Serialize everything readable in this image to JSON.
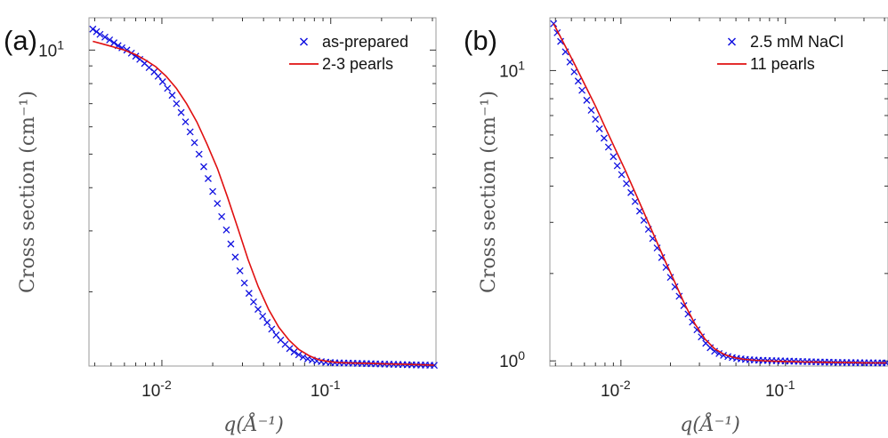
{
  "colors": {
    "data": "#1010e0",
    "fit": "#e01010",
    "axis": "#333333"
  },
  "chart_data": [
    {
      "type": "line",
      "panel_label": "(a)",
      "xscale": "log",
      "yscale": "log",
      "xlim": [
        0.0037,
        0.42
      ],
      "ylim": [
        1.22,
        12.4
      ],
      "xticks": [
        {
          "value": 0.01,
          "base": "10",
          "exp": "-2"
        },
        {
          "value": 0.1,
          "base": "10",
          "exp": "-1"
        }
      ],
      "yticks": [
        {
          "value": 10,
          "base": "10",
          "exp": "1"
        }
      ],
      "xlabel": "q(Å⁻¹)",
      "ylabel": "Cross section (cm⁻¹)",
      "legend_position": "top-right",
      "series": [
        {
          "name": "as-prepared",
          "kind": "scatter",
          "marker": "x",
          "x": [
            0.0039,
            0.0041,
            0.0043,
            0.0046,
            0.0049,
            0.0052,
            0.0055,
            0.0058,
            0.0062,
            0.0066,
            0.007,
            0.0074,
            0.0079,
            0.0084,
            0.009,
            0.0095,
            0.0101,
            0.0108,
            0.0115,
            0.0122,
            0.013,
            0.0138,
            0.0147,
            0.0156,
            0.0166,
            0.0177,
            0.0188,
            0.02,
            0.0213,
            0.0226,
            0.0241,
            0.0256,
            0.0272,
            0.029,
            0.0308,
            0.0328,
            0.0349,
            0.0371,
            0.0395,
            0.042,
            0.0447,
            0.0475,
            0.0505,
            0.0537,
            0.0571,
            0.0607,
            0.0646,
            0.0687,
            0.0731,
            0.0777,
            0.0827,
            0.0879,
            0.0935,
            0.0995,
            0.1058,
            0.1125,
            0.1197,
            0.1273,
            0.1354,
            0.144,
            0.1532,
            0.1629,
            0.1733,
            0.1843,
            0.196,
            0.2085,
            0.2217,
            0.2358,
            0.2508,
            0.2668,
            0.2837,
            0.3018,
            0.321,
            0.3414,
            0.3631,
            0.3862,
            0.41
          ],
          "y": [
            11.5,
            11.3,
            11.1,
            10.9,
            10.7,
            10.5,
            10.3,
            10.15,
            10.0,
            9.8,
            9.6,
            9.4,
            9.15,
            8.9,
            8.65,
            8.4,
            8.1,
            7.75,
            7.4,
            7.0,
            6.6,
            6.2,
            5.8,
            5.4,
            5.0,
            4.6,
            4.25,
            3.9,
            3.6,
            3.3,
            3.02,
            2.75,
            2.52,
            2.3,
            2.12,
            1.98,
            1.87,
            1.78,
            1.7,
            1.63,
            1.56,
            1.5,
            1.45,
            1.41,
            1.37,
            1.34,
            1.315,
            1.295,
            1.28,
            1.27,
            1.262,
            1.256,
            1.252,
            1.249,
            1.247,
            1.246,
            1.245,
            1.244,
            1.243,
            1.242,
            1.241,
            1.24,
            1.239,
            1.238,
            1.237,
            1.236,
            1.235,
            1.234,
            1.233,
            1.232,
            1.231,
            1.23,
            1.229,
            1.228,
            1.228,
            1.227,
            1.226
          ]
        },
        {
          "name": "2-3 pearls",
          "kind": "line",
          "x": [
            0.0039,
            0.0045,
            0.0052,
            0.006,
            0.007,
            0.008,
            0.0092,
            0.0106,
            0.0122,
            0.014,
            0.0161,
            0.0185,
            0.0213,
            0.0245,
            0.0282,
            0.0324,
            0.0372,
            0.0428,
            0.0492,
            0.0566,
            0.065,
            0.0748,
            0.086,
            0.0989,
            0.1137,
            0.1307,
            0.1503,
            0.1728,
            0.1987,
            0.2285,
            0.2627,
            0.302,
            0.3472,
            0.41
          ],
          "y": [
            10.6,
            10.4,
            10.2,
            10.0,
            9.7,
            9.35,
            8.95,
            8.4,
            7.75,
            7.0,
            6.2,
            5.35,
            4.55,
            3.75,
            3.05,
            2.48,
            2.07,
            1.78,
            1.58,
            1.45,
            1.36,
            1.305,
            1.27,
            1.255,
            1.248,
            1.245,
            1.243,
            1.241,
            1.239,
            1.237,
            1.235,
            1.232,
            1.23,
            1.227
          ]
        }
      ]
    },
    {
      "type": "line",
      "panel_label": "(b)",
      "xscale": "log",
      "yscale": "log",
      "xlim": [
        0.0037,
        0.42
      ],
      "ylim": [
        0.96,
        15.2
      ],
      "xticks": [
        {
          "value": 0.01,
          "base": "10",
          "exp": "-2"
        },
        {
          "value": 0.1,
          "base": "10",
          "exp": "-1"
        }
      ],
      "yticks": [
        {
          "value": 1,
          "base": "10",
          "exp": "0"
        },
        {
          "value": 10,
          "base": "10",
          "exp": "1"
        }
      ],
      "xlabel": "q(Å⁻¹)",
      "ylabel": "Cross section (cm⁻¹)",
      "legend_position": "top-right",
      "series": [
        {
          "name": "2.5 mM NaCl",
          "kind": "scatter",
          "marker": "x",
          "x": [
            0.0039,
            0.0041,
            0.0043,
            0.0046,
            0.0049,
            0.0052,
            0.0055,
            0.0058,
            0.0062,
            0.0066,
            0.007,
            0.0074,
            0.0079,
            0.0084,
            0.009,
            0.0095,
            0.0101,
            0.0108,
            0.0115,
            0.0122,
            0.013,
            0.0138,
            0.0147,
            0.0156,
            0.0166,
            0.0177,
            0.0188,
            0.02,
            0.0213,
            0.0226,
            0.0241,
            0.0256,
            0.0272,
            0.029,
            0.0308,
            0.0328,
            0.0349,
            0.0371,
            0.0395,
            0.042,
            0.0447,
            0.0475,
            0.0505,
            0.0537,
            0.0571,
            0.0607,
            0.0646,
            0.0687,
            0.0731,
            0.0777,
            0.0827,
            0.0879,
            0.0935,
            0.0995,
            0.1058,
            0.1125,
            0.1197,
            0.1273,
            0.1354,
            0.144,
            0.1532,
            0.1629,
            0.1733,
            0.1843,
            0.196,
            0.2085,
            0.2217,
            0.2358,
            0.2508,
            0.2668,
            0.2837,
            0.3018,
            0.321,
            0.3414,
            0.3631,
            0.3862,
            0.41
          ],
          "y": [
            14.5,
            13.5,
            12.6,
            11.6,
            10.7,
            9.9,
            9.2,
            8.55,
            7.9,
            7.3,
            6.8,
            6.3,
            5.85,
            5.45,
            5.05,
            4.7,
            4.38,
            4.08,
            3.8,
            3.54,
            3.28,
            3.05,
            2.84,
            2.64,
            2.45,
            2.27,
            2.1,
            1.94,
            1.8,
            1.67,
            1.55,
            1.45,
            1.36,
            1.28,
            1.21,
            1.15,
            1.11,
            1.08,
            1.06,
            1.045,
            1.035,
            1.027,
            1.021,
            1.016,
            1.012,
            1.009,
            1.007,
            1.005,
            1.004,
            1.003,
            1.002,
            1.001,
            1.0,
            0.999,
            0.998,
            0.997,
            0.996,
            0.995,
            0.994,
            0.993,
            0.992,
            0.991,
            0.99,
            0.99,
            0.989,
            0.988,
            0.988,
            0.987,
            0.987,
            0.986,
            0.986,
            0.985,
            0.985,
            0.985,
            0.984,
            0.984,
            0.984
          ]
        },
        {
          "name": "11 pearls",
          "kind": "line",
          "x": [
            0.0039,
            0.0045,
            0.0052,
            0.006,
            0.007,
            0.008,
            0.0092,
            0.0106,
            0.0122,
            0.014,
            0.0161,
            0.0185,
            0.0213,
            0.0245,
            0.0282,
            0.0324,
            0.0372,
            0.0428,
            0.0492,
            0.0566,
            0.065,
            0.0748,
            0.086,
            0.0989,
            0.1137,
            0.1307,
            0.1503,
            0.1728,
            0.1987,
            0.2285,
            0.2627,
            0.302,
            0.3472,
            0.41
          ],
          "y": [
            14.5,
            12.4,
            10.6,
            9.0,
            7.55,
            6.4,
            5.4,
            4.55,
            3.8,
            3.18,
            2.66,
            2.22,
            1.86,
            1.56,
            1.34,
            1.19,
            1.1,
            1.05,
            1.025,
            1.012,
            1.005,
            1.0,
            0.997,
            0.995,
            0.993,
            0.991,
            0.99,
            0.989,
            0.988,
            0.987,
            0.986,
            0.985,
            0.984,
            0.984
          ]
        }
      ]
    }
  ]
}
